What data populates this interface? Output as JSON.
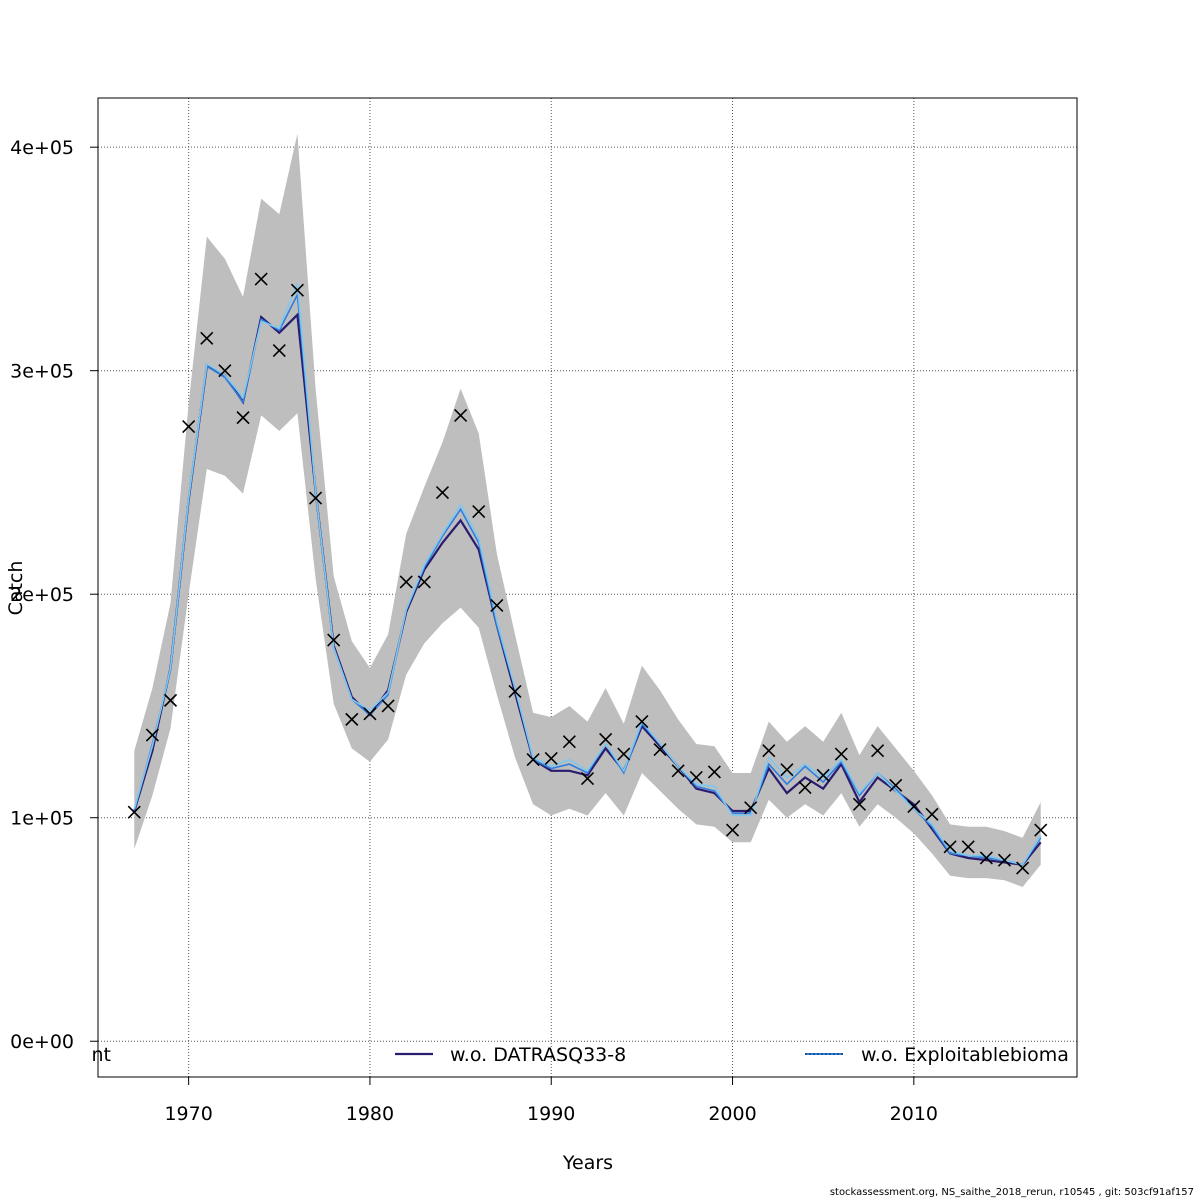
{
  "chart_data": {
    "type": "line",
    "xlabel": "Years",
    "ylabel": "Catch",
    "xlim": [
      1965,
      2019
    ],
    "ylim": [
      -16000,
      422000
    ],
    "x_ticks": [
      1970,
      1980,
      1990,
      2000,
      2010
    ],
    "x_tick_labels": [
      "1970",
      "1980",
      "1990",
      "2000",
      "2010"
    ],
    "y_ticks": [
      0,
      100000,
      200000,
      300000,
      400000
    ],
    "y_tick_labels": [
      "0e+00",
      "1e+05",
      "2e+05",
      "3e+05",
      "4e+05"
    ],
    "grid": true,
    "legend_position": "bottom",
    "legend": [
      {
        "label": "nt",
        "color": ""
      },
      {
        "label": "w.o. DATRASQ33-8",
        "color": "#2a1b6e"
      },
      {
        "label": "w.o. Exploitablebioma",
        "color": "#2f7de0"
      }
    ],
    "x": [
      1967,
      1968,
      1969,
      1970,
      1971,
      1972,
      1973,
      1974,
      1975,
      1976,
      1977,
      1978,
      1979,
      1980,
      1981,
      1982,
      1983,
      1984,
      1985,
      1986,
      1987,
      1988,
      1989,
      1990,
      1991,
      1992,
      1993,
      1994,
      1995,
      1996,
      1997,
      1998,
      1999,
      2000,
      2001,
      2002,
      2003,
      2004,
      2005,
      2006,
      2007,
      2008,
      2009,
      2010,
      2011,
      2012,
      2013,
      2014,
      2015,
      2016,
      2017
    ],
    "ci_upper": [
      130000,
      158000,
      196000,
      285000,
      360000,
      350000,
      333000,
      377000,
      370000,
      406000,
      292000,
      208000,
      179000,
      167000,
      182000,
      227000,
      248000,
      268000,
      292000,
      272000,
      218000,
      182000,
      147000,
      145000,
      150000,
      143000,
      158000,
      142000,
      168000,
      157000,
      144000,
      133000,
      132000,
      120000,
      120000,
      143000,
      134000,
      141000,
      134000,
      147000,
      128000,
      141000,
      131000,
      121000,
      110000,
      97000,
      96000,
      96000,
      94000,
      91000,
      107000
    ],
    "ci_lower": [
      86000,
      110000,
      140000,
      200000,
      256000,
      253000,
      245000,
      280000,
      273000,
      281000,
      207000,
      151000,
      131000,
      125000,
      135000,
      164000,
      178000,
      187000,
      194000,
      185000,
      155000,
      127000,
      106000,
      101000,
      104000,
      101000,
      111000,
      101000,
      120000,
      112000,
      104000,
      97000,
      96000,
      89000,
      89000,
      108000,
      100000,
      106000,
      101000,
      111000,
      96000,
      106000,
      100000,
      93000,
      84000,
      74000,
      73000,
      73000,
      72000,
      69000,
      79000
    ],
    "series": [
      {
        "name": "w.o. DATRASQ33-8",
        "color": "#2a1b6e",
        "values": [
          103000,
          130000,
          167000,
          242000,
          302000,
          298000,
          286000,
          324000,
          317000,
          325000,
          246000,
          177000,
          154000,
          146000,
          157000,
          192000,
          211000,
          223000,
          233000,
          220000,
          186000,
          156000,
          126000,
          121000,
          121000,
          119000,
          131000,
          121000,
          141000,
          132000,
          123000,
          113000,
          111000,
          103000,
          103000,
          122000,
          111000,
          118000,
          113000,
          124000,
          107000,
          118000,
          112000,
          106000,
          95000,
          84000,
          82000,
          81000,
          80000,
          79000,
          89000
        ]
      },
      {
        "name": "w.o. Exploitablebioma",
        "color": "#2f7de0",
        "values": [
          103000,
          133000,
          166000,
          242000,
          302000,
          297000,
          286000,
          323000,
          318000,
          334000,
          246000,
          176000,
          153000,
          146000,
          155000,
          193000,
          212000,
          226000,
          238000,
          223000,
          186000,
          158000,
          126000,
          122000,
          124000,
          120000,
          133000,
          120000,
          142000,
          133000,
          123000,
          114000,
          112000,
          102000,
          102000,
          124000,
          115000,
          123000,
          116000,
          125000,
          110000,
          120000,
          113000,
          104000,
          96000,
          84000,
          83000,
          82000,
          81000,
          79000,
          91000
        ]
      },
      {
        "name": "",
        "color": "#7ec8ee",
        "values": [
          104000,
          132000,
          167000,
          243000,
          303000,
          298000,
          288000,
          322000,
          319000,
          339000,
          246000,
          176000,
          153000,
          148000,
          156000,
          193000,
          213000,
          227000,
          240000,
          225000,
          188000,
          158000,
          127000,
          123000,
          126000,
          121000,
          133000,
          121000,
          143000,
          133000,
          123000,
          115000,
          114000,
          101000,
          101000,
          127000,
          118000,
          124000,
          118000,
          126000,
          111000,
          120000,
          112000,
          104000,
          97000,
          85000,
          83000,
          83000,
          81000,
          79000,
          92000
        ]
      }
    ],
    "observed_marker": "x",
    "observed": [
      102500,
      137000,
      152500,
      275000,
      314500,
      300000,
      279000,
      341000,
      309000,
      336000,
      243000,
      179500,
      144000,
      146500,
      150000,
      205500,
      205500,
      245500,
      280000,
      237000,
      195000,
      156500,
      126000,
      126500,
      134000,
      117500,
      135000,
      128500,
      143000,
      130500,
      121000,
      118000,
      120500,
      94500,
      104500,
      130000,
      121500,
      113500,
      119000,
      128500,
      106000,
      130000,
      114500,
      105000,
      101500,
      87000,
      87000,
      82000,
      81000,
      77500,
      94500
    ]
  },
  "footer": "stockassessment.org, NS_saithe_2018_rerun, r10545 , git: 503cf91af157"
}
